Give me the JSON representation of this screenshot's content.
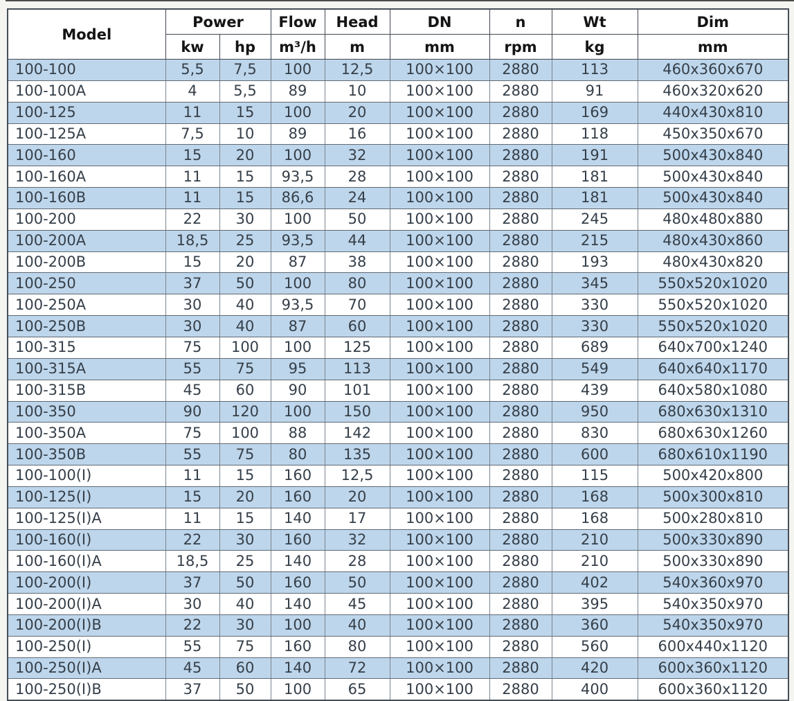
{
  "colors": {
    "stripe_blue": "#bed6eb",
    "row_white": "#ffffff",
    "data_text": "#353f49",
    "header_text": "#141414",
    "inner_border": "#5f6973",
    "outer_border": "#454e57",
    "page_background": "#f4f4f0"
  },
  "chart_data": {
    "type": "table",
    "header": {
      "model": "Model",
      "power_group": "Power",
      "power_kw_unit": "kw",
      "power_hp_unit": "hp",
      "flow": "Flow",
      "flow_unit": "m³/h",
      "head": "Head",
      "head_unit": "m",
      "dn": "DN",
      "dn_unit": "mm",
      "speed": "n",
      "speed_unit": "rpm",
      "weight": "Wt",
      "weight_unit": "kg",
      "dim": "Dim",
      "dim_unit": "mm"
    },
    "column_keys": [
      "model",
      "power-kw",
      "power-hp",
      "flow",
      "head",
      "dn",
      "speed",
      "weight",
      "dim"
    ],
    "rows": [
      [
        "100-100",
        "5,5",
        "7,5",
        "100",
        "12,5",
        "100×100",
        "2880",
        "113",
        "460x360x670"
      ],
      [
        "100-100A",
        "4",
        "5,5",
        "89",
        "10",
        "100×100",
        "2880",
        "91",
        "460x320x620"
      ],
      [
        "100-125",
        "11",
        "15",
        "100",
        "20",
        "100×100",
        "2880",
        "169",
        "440x430x810"
      ],
      [
        "100-125A",
        "7,5",
        "10",
        "89",
        "16",
        "100×100",
        "2880",
        "118",
        "450x350x670"
      ],
      [
        "100-160",
        "15",
        "20",
        "100",
        "32",
        "100×100",
        "2880",
        "191",
        "500x430x840"
      ],
      [
        "100-160A",
        "11",
        "15",
        "93,5",
        "28",
        "100×100",
        "2880",
        "181",
        "500x430x840"
      ],
      [
        "100-160B",
        "11",
        "15",
        "86,6",
        "24",
        "100×100",
        "2880",
        "181",
        "500x430x840"
      ],
      [
        "100-200",
        "22",
        "30",
        "100",
        "50",
        "100×100",
        "2880",
        "245",
        "480x480x880"
      ],
      [
        "100-200A",
        "18,5",
        "25",
        "93,5",
        "44",
        "100×100",
        "2880",
        "215",
        "480x430x860"
      ],
      [
        "100-200B",
        "15",
        "20",
        "87",
        "38",
        "100×100",
        "2880",
        "193",
        "480x430x820"
      ],
      [
        "100-250",
        "37",
        "50",
        "100",
        "80",
        "100×100",
        "2880",
        "345",
        "550x520x1020"
      ],
      [
        "100-250A",
        "30",
        "40",
        "93,5",
        "70",
        "100×100",
        "2880",
        "330",
        "550x520x1020"
      ],
      [
        "100-250B",
        "30",
        "40",
        "87",
        "60",
        "100×100",
        "2880",
        "330",
        "550x520x1020"
      ],
      [
        "100-315",
        "75",
        "100",
        "100",
        "125",
        "100×100",
        "2880",
        "689",
        "640x700x1240"
      ],
      [
        "100-315A",
        "55",
        "75",
        "95",
        "113",
        "100×100",
        "2880",
        "549",
        "640x640x1170"
      ],
      [
        "100-315B",
        "45",
        "60",
        "90",
        "101",
        "100×100",
        "2880",
        "439",
        "640x580x1080"
      ],
      [
        "100-350",
        "90",
        "120",
        "100",
        "150",
        "100×100",
        "2880",
        "950",
        "680x630x1310"
      ],
      [
        "100-350A",
        "75",
        "100",
        "88",
        "142",
        "100×100",
        "2880",
        "830",
        "680x630x1260"
      ],
      [
        "100-350B",
        "55",
        "75",
        "80",
        "135",
        "100×100",
        "2880",
        "600",
        "680x610x1190"
      ],
      [
        "100-100(I)",
        "11",
        "15",
        "160",
        "12,5",
        "100×100",
        "2880",
        "115",
        "500x420x800"
      ],
      [
        "100-125(I)",
        "15",
        "20",
        "160",
        "20",
        "100×100",
        "2880",
        "168",
        "500x300x810"
      ],
      [
        "100-125(I)A",
        "11",
        "15",
        "140",
        "17",
        "100×100",
        "2880",
        "168",
        "500x280x810"
      ],
      [
        "100-160(I)",
        "22",
        "30",
        "160",
        "32",
        "100×100",
        "2880",
        "210",
        "500x330x890"
      ],
      [
        "100-160(I)A",
        "18,5",
        "25",
        "140",
        "28",
        "100×100",
        "2880",
        "210",
        "500x330x890"
      ],
      [
        "100-200(I)",
        "37",
        "50",
        "160",
        "50",
        "100×100",
        "2880",
        "402",
        "540x360x970"
      ],
      [
        "100-200(I)A",
        "30",
        "40",
        "140",
        "45",
        "100×100",
        "2880",
        "395",
        "540x350x970"
      ],
      [
        "100-200(I)B",
        "22",
        "30",
        "100",
        "40",
        "100×100",
        "2880",
        "360",
        "540x350x970"
      ],
      [
        "100-250(I)",
        "55",
        "75",
        "160",
        "80",
        "100×100",
        "2880",
        "560",
        "600x440x1120"
      ],
      [
        "100-250(I)A",
        "45",
        "60",
        "140",
        "72",
        "100×100",
        "2880",
        "420",
        "600x360x1120"
      ],
      [
        "100-250(I)B",
        "37",
        "50",
        "100",
        "65",
        "100×100",
        "2880",
        "400",
        "600x360x1120"
      ]
    ]
  }
}
